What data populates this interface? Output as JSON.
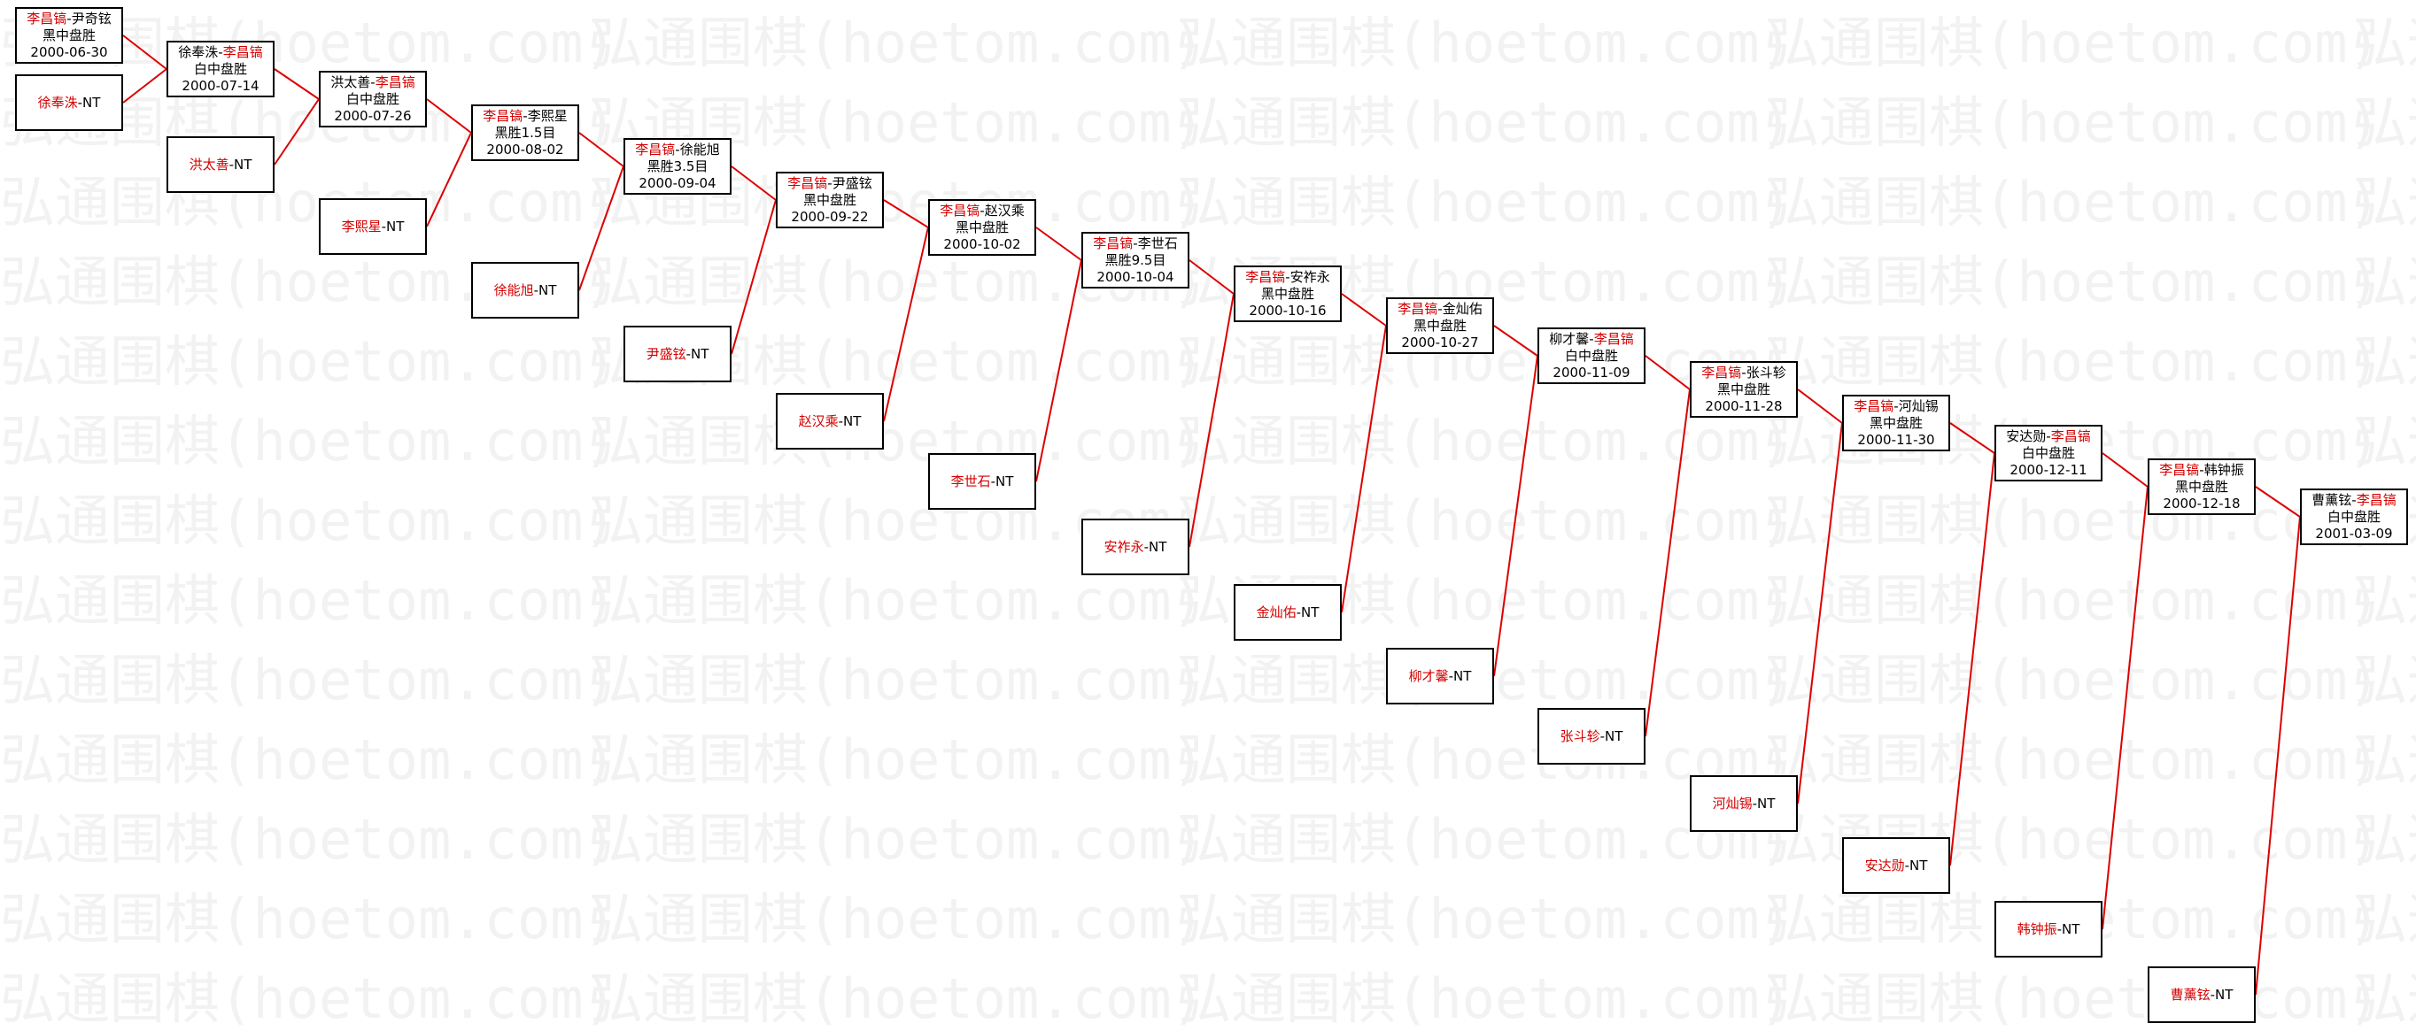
{
  "watermark_text": "弘通围棋(hoetom.com)",
  "colors": {
    "line": "#dd0000",
    "highlight": "#d40000",
    "border": "#000000"
  },
  "games": [
    {
      "id": "g1",
      "players": [
        {
          "text": "李昌镐",
          "hl": true
        },
        {
          "text": "-尹奇铉",
          "hl": false
        }
      ],
      "result": "黑中盘胜",
      "date": "2000-06-30"
    },
    {
      "id": "g1b",
      "players": [
        {
          "text": "徐奉洙",
          "hl": true
        },
        {
          "text": "-NT",
          "hl": false
        }
      ],
      "result": "",
      "date": ""
    },
    {
      "id": "g2",
      "players": [
        {
          "text": "徐奉洙-",
          "hl": false
        },
        {
          "text": "李昌镐",
          "hl": true
        }
      ],
      "result": "白中盘胜",
      "date": "2000-07-14"
    },
    {
      "id": "g2b",
      "players": [
        {
          "text": "洪太善",
          "hl": true
        },
        {
          "text": "-NT",
          "hl": false
        }
      ],
      "result": "",
      "date": ""
    },
    {
      "id": "g3",
      "players": [
        {
          "text": "洪太善-",
          "hl": false
        },
        {
          "text": "李昌镐",
          "hl": true
        }
      ],
      "result": "白中盘胜",
      "date": "2000-07-26"
    },
    {
      "id": "g3b",
      "players": [
        {
          "text": "李熙星",
          "hl": true
        },
        {
          "text": "-NT",
          "hl": false
        }
      ],
      "result": "",
      "date": ""
    },
    {
      "id": "g4",
      "players": [
        {
          "text": "李昌镐",
          "hl": true
        },
        {
          "text": "-李熙星",
          "hl": false
        }
      ],
      "result": "黑胜1.5目",
      "date": "2000-08-02"
    },
    {
      "id": "g4b",
      "players": [
        {
          "text": "徐能旭",
          "hl": true
        },
        {
          "text": "-NT",
          "hl": false
        }
      ],
      "result": "",
      "date": ""
    },
    {
      "id": "g5",
      "players": [
        {
          "text": "李昌镐",
          "hl": true
        },
        {
          "text": "-徐能旭",
          "hl": false
        }
      ],
      "result": "黑胜3.5目",
      "date": "2000-09-04"
    },
    {
      "id": "g5b",
      "players": [
        {
          "text": "尹盛铉",
          "hl": true
        },
        {
          "text": "-NT",
          "hl": false
        }
      ],
      "result": "",
      "date": ""
    },
    {
      "id": "g6",
      "players": [
        {
          "text": "李昌镐",
          "hl": true
        },
        {
          "text": "-尹盛铉",
          "hl": false
        }
      ],
      "result": "黑中盘胜",
      "date": "2000-09-22"
    },
    {
      "id": "g6b",
      "players": [
        {
          "text": "赵汉乘",
          "hl": true
        },
        {
          "text": "-NT",
          "hl": false
        }
      ],
      "result": "",
      "date": ""
    },
    {
      "id": "g7",
      "players": [
        {
          "text": "李昌镐",
          "hl": true
        },
        {
          "text": "-赵汉乘",
          "hl": false
        }
      ],
      "result": "黑中盘胜",
      "date": "2000-10-02"
    },
    {
      "id": "g7b",
      "players": [
        {
          "text": "李世石",
          "hl": true
        },
        {
          "text": "-NT",
          "hl": false
        }
      ],
      "result": "",
      "date": ""
    },
    {
      "id": "g8",
      "players": [
        {
          "text": "李昌镐",
          "hl": true
        },
        {
          "text": "-李世石",
          "hl": false
        }
      ],
      "result": "黑胜9.5目",
      "date": "2000-10-04"
    },
    {
      "id": "g8b",
      "players": [
        {
          "text": "安祚永",
          "hl": true
        },
        {
          "text": "-NT",
          "hl": false
        }
      ],
      "result": "",
      "date": ""
    },
    {
      "id": "g9",
      "players": [
        {
          "text": "李昌镐",
          "hl": true
        },
        {
          "text": "-安祚永",
          "hl": false
        }
      ],
      "result": "黑中盘胜",
      "date": "2000-10-16"
    },
    {
      "id": "g9b",
      "players": [
        {
          "text": "金灿佑",
          "hl": true
        },
        {
          "text": "-NT",
          "hl": false
        }
      ],
      "result": "",
      "date": ""
    },
    {
      "id": "g10",
      "players": [
        {
          "text": "李昌镐",
          "hl": true
        },
        {
          "text": "-金灿佑",
          "hl": false
        }
      ],
      "result": "黑中盘胜",
      "date": "2000-10-27"
    },
    {
      "id": "g10b",
      "players": [
        {
          "text": "柳才馨",
          "hl": true
        },
        {
          "text": "-NT",
          "hl": false
        }
      ],
      "result": "",
      "date": ""
    },
    {
      "id": "g11",
      "players": [
        {
          "text": "柳才馨-",
          "hl": false
        },
        {
          "text": "李昌镐",
          "hl": true
        }
      ],
      "result": "白中盘胜",
      "date": "2000-11-09"
    },
    {
      "id": "g11b",
      "players": [
        {
          "text": "张斗轸",
          "hl": true
        },
        {
          "text": "-NT",
          "hl": false
        }
      ],
      "result": "",
      "date": ""
    },
    {
      "id": "g12",
      "players": [
        {
          "text": "李昌镐",
          "hl": true
        },
        {
          "text": "-张斗轸",
          "hl": false
        }
      ],
      "result": "黑中盘胜",
      "date": "2000-11-28"
    },
    {
      "id": "g12b",
      "players": [
        {
          "text": "河灿锡",
          "hl": true
        },
        {
          "text": "-NT",
          "hl": false
        }
      ],
      "result": "",
      "date": ""
    },
    {
      "id": "g13",
      "players": [
        {
          "text": "李昌镐",
          "hl": true
        },
        {
          "text": "-河灿锡",
          "hl": false
        }
      ],
      "result": "黑中盘胜",
      "date": "2000-11-30"
    },
    {
      "id": "g13b",
      "players": [
        {
          "text": "安达勋",
          "hl": true
        },
        {
          "text": "-NT",
          "hl": false
        }
      ],
      "result": "",
      "date": ""
    },
    {
      "id": "g14",
      "players": [
        {
          "text": "安达勋-",
          "hl": false
        },
        {
          "text": "李昌镐",
          "hl": true
        }
      ],
      "result": "白中盘胜",
      "date": "2000-12-11"
    },
    {
      "id": "g14b",
      "players": [
        {
          "text": "韩钟振",
          "hl": true
        },
        {
          "text": "-NT",
          "hl": false
        }
      ],
      "result": "",
      "date": ""
    },
    {
      "id": "g15",
      "players": [
        {
          "text": "李昌镐",
          "hl": true
        },
        {
          "text": "-韩钟振",
          "hl": false
        }
      ],
      "result": "黑中盘胜",
      "date": "2000-12-18"
    },
    {
      "id": "g15b",
      "players": [
        {
          "text": "曹薰铉",
          "hl": true
        },
        {
          "text": "-NT",
          "hl": false
        }
      ],
      "result": "",
      "date": ""
    },
    {
      "id": "g16",
      "players": [
        {
          "text": "曹薰铉-",
          "hl": false
        },
        {
          "text": "李昌镐",
          "hl": true
        }
      ],
      "result": "白中盘胜",
      "date": "2001-03-09"
    }
  ]
}
